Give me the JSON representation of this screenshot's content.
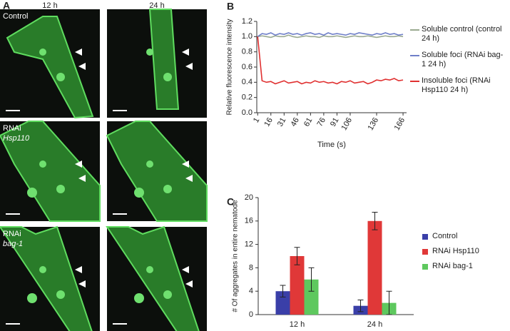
{
  "panel_labels": [
    "A",
    "B",
    "C"
  ],
  "panel_a": {
    "columns": [
      "12 h",
      "24 h"
    ],
    "rows": [
      [
        "Control"
      ],
      [
        "RNAi",
        "Hsp110"
      ],
      [
        "RNAi",
        "bag-1"
      ]
    ]
  },
  "chart_data": [
    {
      "type": "line",
      "xlabel": "Time (s)",
      "ylabel": "Relative fluorescence intensity",
      "x": [
        1,
        6,
        11,
        16,
        21,
        26,
        31,
        36,
        41,
        46,
        51,
        56,
        61,
        66,
        71,
        76,
        81,
        86,
        91,
        96,
        101,
        106,
        111,
        116,
        121,
        126,
        131,
        136,
        141,
        146,
        151,
        156,
        161,
        166
      ],
      "xlim": [
        0,
        170
      ],
      "xticks": [
        1,
        16,
        31,
        46,
        61,
        76,
        91,
        106,
        136,
        166
      ],
      "ylim": [
        0,
        1.2
      ],
      "yticks": [
        {
          "value": 0,
          "label": "0.0"
        },
        {
          "value": 0.2,
          "label": "0.2"
        },
        {
          "value": 0.4,
          "label": "0.4"
        },
        {
          "value": 0.6,
          "label": "0.6"
        },
        {
          "value": 0.8,
          "label": "0.8"
        },
        {
          "value": 1,
          "label": "1.0"
        },
        {
          "value": 1.2,
          "label": "1.2"
        }
      ],
      "series": [
        {
          "name": "Soluble control (control 24 h)",
          "color": "#9aaa90",
          "values": [
            1.0,
            1.01,
            1.0,
            0.99,
            1.01,
            1.0,
            1.0,
            1.02,
            1.0,
            0.99,
            1.0,
            1.01,
            1.0,
            1.0,
            0.99,
            1.01,
            1.0,
            1.0,
            1.01,
            1.0,
            0.99,
            1.0,
            1.01,
            1.0,
            1.0,
            1.01,
            1.0,
            0.99,
            1.0,
            1.01,
            1.0,
            1.0,
            1.01,
            1.0
          ]
        },
        {
          "name": "Soluble foci (RNAi bag-1 24 h)",
          "color": "#6f7fc8",
          "values": [
            1.0,
            1.04,
            1.03,
            1.05,
            1.02,
            1.04,
            1.03,
            1.05,
            1.03,
            1.04,
            1.02,
            1.04,
            1.05,
            1.03,
            1.04,
            1.02,
            1.05,
            1.03,
            1.04,
            1.03,
            1.02,
            1.04,
            1.03,
            1.05,
            1.04,
            1.03,
            1.02,
            1.04,
            1.03,
            1.05,
            1.03,
            1.04,
            1.02,
            1.03
          ]
        },
        {
          "name": "Insoluble foci (RNAi Hsp110 24 h)",
          "color": "#e03030",
          "values": [
            1.0,
            0.42,
            0.4,
            0.41,
            0.38,
            0.4,
            0.42,
            0.39,
            0.4,
            0.41,
            0.38,
            0.4,
            0.39,
            0.42,
            0.4,
            0.41,
            0.39,
            0.4,
            0.38,
            0.41,
            0.4,
            0.42,
            0.39,
            0.4,
            0.41,
            0.38,
            0.4,
            0.43,
            0.42,
            0.44,
            0.43,
            0.45,
            0.42,
            0.43
          ]
        }
      ]
    },
    {
      "type": "bar",
      "ylabel": "# Of aggregates in entire nematode",
      "categories": [
        "12 h",
        "24 h"
      ],
      "ylim": [
        0,
        20
      ],
      "yticks": [
        0,
        4,
        8,
        12,
        16,
        20
      ],
      "series": [
        {
          "name": "Control",
          "color": "#3a3fa8",
          "values": [
            4,
            1.5
          ],
          "errors": [
            1,
            1
          ]
        },
        {
          "name": "RNAi Hsp110",
          "color": "#e03838",
          "values": [
            10,
            16
          ],
          "errors": [
            1.5,
            1.5
          ]
        },
        {
          "name": "RNAi bag-1",
          "color": "#5ec85e",
          "values": [
            6,
            2
          ],
          "errors": [
            2,
            2
          ]
        }
      ]
    }
  ]
}
